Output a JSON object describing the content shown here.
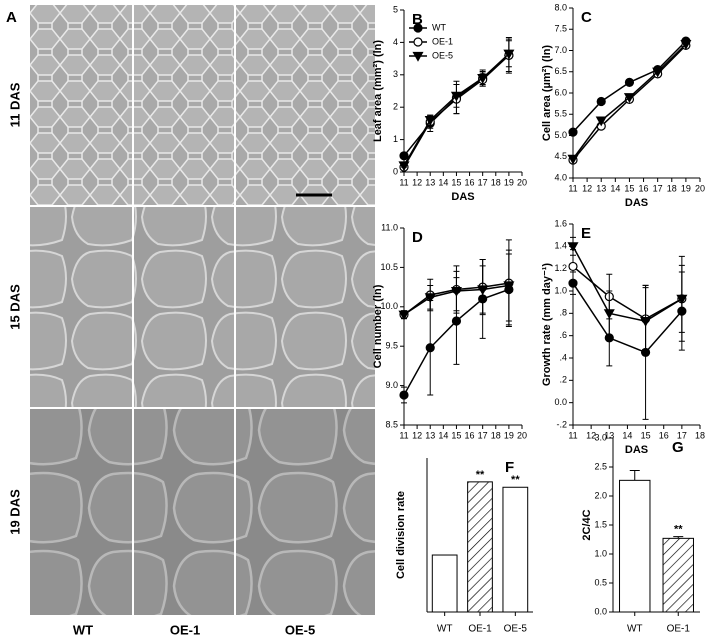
{
  "figure": {
    "panel_label": "A",
    "rows": [
      "11 DAS",
      "15 DAS",
      "19 DAS"
    ],
    "columns": [
      "WT",
      "OE-1",
      "OE-5"
    ]
  },
  "chart_data": [
    {
      "type": "line",
      "label": "B",
      "ylabel": "Leaf area (mm²) (ln)",
      "xlabel": "DAS",
      "legend": "upper left",
      "xlim": [
        11,
        20
      ],
      "xticks": [
        11,
        12,
        13,
        14,
        15,
        16,
        17,
        18,
        19,
        20
      ],
      "ylim": [
        0,
        5
      ],
      "yticks": [
        0,
        1,
        2,
        3,
        4,
        5
      ],
      "x": [
        11,
        13,
        15,
        17,
        19
      ],
      "series": [
        {
          "name": "WT",
          "color": "#000000",
          "marker": "circle",
          "values": [
            0.5,
            1.5,
            2.3,
            2.9,
            3.6
          ],
          "errors": [
            0.08,
            0.25,
            0.5,
            0.25,
            0.5
          ]
        },
        {
          "name": "OE-1",
          "color": "#000000",
          "marker": "circle-open",
          "values": [
            0.15,
            1.55,
            2.25,
            2.85,
            3.6
          ],
          "errors": [
            0.05,
            0.2,
            0.45,
            0.2,
            0.55
          ]
        },
        {
          "name": "OE-5",
          "color": "#000000",
          "marker": "triangle-down",
          "values": [
            0.2,
            1.6,
            2.35,
            2.9,
            3.65
          ],
          "errors": [
            0.05,
            0.15,
            0.35,
            0.2,
            0.4
          ]
        }
      ]
    },
    {
      "type": "line",
      "label": "C",
      "ylabel": "Cell area (µm²) (ln)",
      "xlabel": "DAS",
      "xlim": [
        11,
        20
      ],
      "xticks": [
        11,
        12,
        13,
        14,
        15,
        16,
        17,
        18,
        19,
        20
      ],
      "ylim": [
        4,
        8
      ],
      "yticks": [
        {
          "value": 4,
          "label": "4.0"
        },
        4.5,
        {
          "value": 5,
          "label": "5.0"
        },
        5.5,
        {
          "value": 6,
          "label": "6.0"
        },
        6.5,
        {
          "value": 7,
          "label": "7.0"
        },
        7.5,
        {
          "value": 8,
          "label": "8.0"
        }
      ],
      "x": [
        11,
        13,
        15,
        17,
        19
      ],
      "series": [
        {
          "name": "WT",
          "color": "#000000",
          "marker": "circle",
          "values": [
            5.08,
            5.8,
            6.25,
            6.55,
            7.22
          ]
        },
        {
          "name": "OE-1",
          "color": "#000000",
          "marker": "circle-open",
          "values": [
            4.42,
            5.22,
            5.85,
            6.45,
            7.12
          ]
        },
        {
          "name": "OE-5",
          "color": "#000000",
          "marker": "triangle-down",
          "values": [
            4.45,
            5.35,
            5.9,
            6.5,
            7.15
          ]
        }
      ]
    },
    {
      "type": "line",
      "label": "D",
      "ylabel": "Cell number (ln)",
      "xlim": [
        11,
        20
      ],
      "xticks": [
        11,
        12,
        13,
        14,
        15,
        16,
        17,
        18,
        19,
        20
      ],
      "ylim": [
        8.5,
        11
      ],
      "yticks": [
        8.5,
        {
          "value": 9,
          "label": "9.0"
        },
        9.5,
        {
          "value": 10,
          "label": "10.0"
        },
        10.5,
        {
          "value": 11,
          "label": "11.0"
        }
      ],
      "x": [
        11,
        13,
        15,
        17,
        19
      ],
      "series": [
        {
          "name": "WT",
          "color": "#000000",
          "marker": "circle",
          "values": [
            8.88,
            9.48,
            9.82,
            10.1,
            10.22
          ],
          "errors": [
            0.1,
            0.6,
            0.55,
            0.5,
            0.45
          ]
        },
        {
          "name": "OE-1",
          "color": "#000000",
          "marker": "circle-open",
          "values": [
            9.9,
            10.15,
            10.22,
            10.25,
            10.3
          ],
          "errors": [
            0.05,
            0.2,
            0.3,
            0.35,
            0.55
          ]
        },
        {
          "name": "OE-5",
          "color": "#000000",
          "marker": "triangle-down",
          "values": [
            9.9,
            10.12,
            10.2,
            10.22,
            10.27
          ],
          "errors": [
            0.05,
            0.15,
            0.25,
            0.3,
            0.45
          ]
        }
      ]
    },
    {
      "type": "line",
      "label": "E",
      "ylabel": "Growth rate (mm day⁻¹)",
      "xlabel": "DAS",
      "xlim": [
        11,
        18
      ],
      "xticks": [
        11,
        12,
        13,
        14,
        15,
        16,
        17,
        18
      ],
      "ylim": [
        -0.2,
        1.6
      ],
      "yticks": [
        {
          "value": -0.2,
          "label": "-.2"
        },
        {
          "value": 0,
          "label": "0.0"
        },
        {
          "value": 0.2,
          "label": ".2"
        },
        {
          "value": 0.4,
          "label": ".4"
        },
        {
          "value": 0.6,
          "label": ".6"
        },
        {
          "value": 0.8,
          "label": ".8"
        },
        {
          "value": 1,
          "label": "1.0"
        },
        1.2,
        1.4,
        1.6
      ],
      "x": [
        11,
        13,
        15,
        17
      ],
      "series": [
        {
          "name": "WT",
          "color": "#000000",
          "marker": "circle",
          "values": [
            1.07,
            0.58,
            0.45,
            0.82
          ],
          "errors": [
            0.1,
            0.25,
            0.6,
            0.35
          ]
        },
        {
          "name": "OE-1",
          "color": "#000000",
          "marker": "circle-open",
          "values": [
            1.22,
            0.95,
            0.75,
            0.93
          ],
          "errors": [
            0.15,
            0.2,
            0.3,
            0.38
          ]
        },
        {
          "name": "OE-5",
          "color": "#000000",
          "marker": "triangle-down",
          "values": [
            1.4,
            0.8,
            0.73,
            0.93
          ],
          "errors": [
            0.08,
            0.2,
            0.3,
            0.3
          ]
        }
      ]
    },
    {
      "type": "bar",
      "label": "F",
      "ylabel": "Cell division rate",
      "ylim": [
        0,
        2000
      ],
      "categories": [
        "WT",
        "OE-1",
        "OE-5"
      ],
      "values": [
        740,
        1690,
        1620
      ],
      "fills": [
        "plain",
        "hatch",
        "plain"
      ],
      "annotations": [
        null,
        "**",
        "**"
      ]
    },
    {
      "type": "bar",
      "label": "G",
      "ylabel": "2C/4C",
      "ylim": [
        0,
        3
      ],
      "yticks": [
        {
          "value": 0,
          "label": "0.0"
        },
        0.5,
        {
          "value": 1,
          "label": "1.0"
        },
        1.5,
        {
          "value": 2,
          "label": "2.0"
        },
        2.5,
        {
          "value": 3,
          "label": "3.0"
        }
      ],
      "categories": [
        "WT",
        "OE-1"
      ],
      "values": [
        2.27,
        1.27
      ],
      "errors": [
        0.17,
        0.03
      ],
      "fills": [
        "plain",
        "hatch"
      ],
      "annotations": [
        null,
        "**"
      ]
    }
  ]
}
